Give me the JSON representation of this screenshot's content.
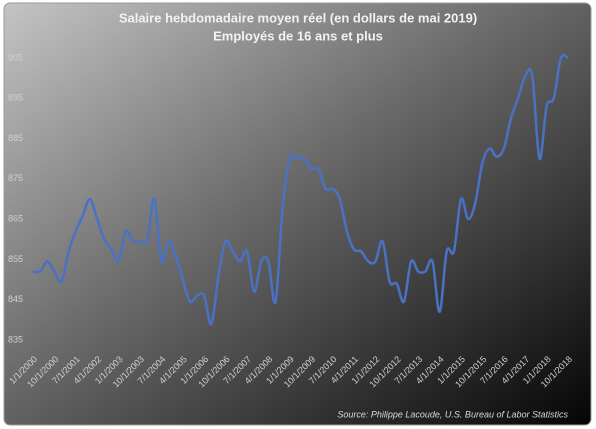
{
  "chart_data": {
    "type": "line",
    "title": "Salaire hebdomadaire moyen réel (en dollars de mai 2019)",
    "subtitle": "Employés de 16 ans et plus",
    "source": "Source: Philippe Lacoude, U.S. Bureau of Labor Statistics",
    "categories": [
      "1/1/2000",
      null,
      null,
      "10/1/2000",
      null,
      null,
      "7/1/2001",
      null,
      null,
      "4/1/2002",
      null,
      null,
      "1/1/2003",
      null,
      null,
      "10/1/2003",
      null,
      null,
      "7/1/2004",
      null,
      null,
      "4/1/2005",
      null,
      null,
      "1/1/2006",
      null,
      null,
      "10/1/2006",
      null,
      null,
      "7/1/2007",
      null,
      null,
      "4/1/2008",
      null,
      null,
      "1/1/2009",
      null,
      null,
      "10/1/2009",
      null,
      null,
      "7/1/2010",
      null,
      null,
      "4/1/2011",
      null,
      null,
      "1/1/2012",
      null,
      null,
      "10/1/2012",
      null,
      null,
      "7/1/2013",
      null,
      null,
      "4/1/2014",
      null,
      null,
      "1/1/2015",
      null,
      null,
      "10/1/2015",
      null,
      null,
      "7/1/2016",
      null,
      null,
      "4/1/2017",
      null,
      null,
      "1/1/2018",
      null,
      null,
      "10/1/2018"
    ],
    "series": [
      {
        "name": "Salaire hebdomadaire moyen réel",
        "color": "#4a72c4",
        "values": [
          852,
          852,
          854.5,
          852,
          849.5,
          857,
          862,
          866,
          870,
          865,
          860,
          857.5,
          854.5,
          862,
          859.5,
          859.5,
          859.5,
          870,
          854.5,
          859.5,
          856,
          850,
          844.5,
          846,
          846,
          839,
          851,
          859.5,
          857,
          854.5,
          857,
          847,
          854.5,
          854.5,
          844.5,
          868,
          880,
          880,
          880,
          877.5,
          877.5,
          872.5,
          872.5,
          870,
          862,
          857.5,
          857,
          854.5,
          854.5,
          859.5,
          849.5,
          849,
          844.5,
          854.5,
          852,
          852,
          854.5,
          842,
          857,
          857,
          870,
          865,
          869,
          879,
          882.5,
          880.5,
          882.5,
          890,
          895,
          900.5,
          900.5,
          880,
          893,
          895,
          905,
          905
        ]
      }
    ],
    "ylim": [
      835,
      905
    ],
    "yticks": [
      835,
      845,
      855,
      865,
      875,
      885,
      895,
      905
    ],
    "grid": false
  }
}
